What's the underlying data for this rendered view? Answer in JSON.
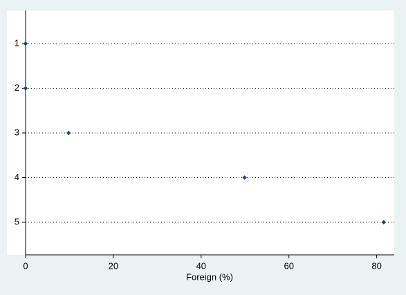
{
  "chart_data": {
    "type": "dot",
    "x_label": "Foreign (%)",
    "categories": [
      "1",
      "2",
      "3",
      "4",
      "5"
    ],
    "values": [
      0,
      0,
      9.8,
      49.9,
      81.6
    ],
    "color": "#1a476f",
    "xlim": [
      0,
      84
    ],
    "xticks": [
      0,
      20,
      40,
      60,
      80
    ],
    "grid": true
  }
}
